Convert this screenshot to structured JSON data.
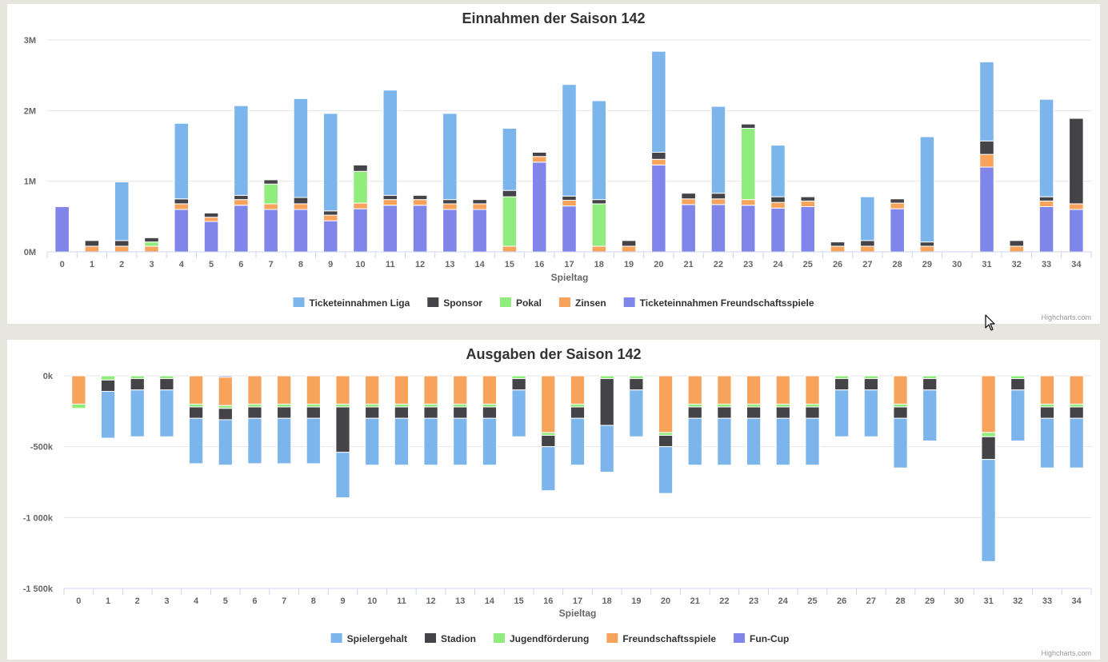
{
  "chart_data": [
    {
      "type": "bar",
      "stacked": true,
      "title": "Einnahmen der Saison 142",
      "xlabel": "Spieltag",
      "ylabel": "",
      "ylim": [
        0,
        3000000
      ],
      "ytick_values": [
        0,
        1000000,
        2000000,
        3000000
      ],
      "ytick_labels": [
        "0M",
        "1M",
        "2M",
        "3M"
      ],
      "grid": true,
      "legend": "bottom-center",
      "credits": "Highcharts.com",
      "categories": [
        "0",
        "1",
        "2",
        "3",
        "4",
        "5",
        "6",
        "7",
        "8",
        "9",
        "10",
        "11",
        "12",
        "13",
        "14",
        "15",
        "16",
        "17",
        "18",
        "19",
        "20",
        "21",
        "22",
        "23",
        "24",
        "25",
        "26",
        "27",
        "28",
        "29",
        "30",
        "31",
        "32",
        "33",
        "34"
      ],
      "series": [
        {
          "name": "Ticketeinnahmen Liga",
          "color": "#7cb5ec",
          "values": [
            0,
            0,
            830000,
            0,
            1070000,
            0,
            1270000,
            0,
            1400000,
            1380000,
            0,
            1490000,
            0,
            1220000,
            0,
            880000,
            0,
            1580000,
            1400000,
            0,
            1430000,
            0,
            1230000,
            0,
            730000,
            0,
            0,
            620000,
            0,
            1490000,
            0,
            1120000,
            0,
            1380000,
            0
          ]
        },
        {
          "name": "Sponsor",
          "color": "#434348",
          "values": [
            0,
            80000,
            80000,
            60000,
            70000,
            60000,
            60000,
            60000,
            90000,
            60000,
            90000,
            60000,
            60000,
            60000,
            60000,
            90000,
            60000,
            60000,
            60000,
            80000,
            100000,
            80000,
            80000,
            60000,
            80000,
            60000,
            60000,
            80000,
            60000,
            60000,
            0,
            190000,
            80000,
            60000,
            1210000
          ]
        },
        {
          "name": "Pokal",
          "color": "#90ed7d",
          "values": [
            0,
            0,
            0,
            60000,
            0,
            0,
            0,
            280000,
            0,
            0,
            450000,
            0,
            0,
            0,
            0,
            700000,
            0,
            0,
            600000,
            0,
            0,
            0,
            0,
            1010000,
            0,
            0,
            0,
            0,
            0,
            0,
            0,
            0,
            0,
            0,
            0
          ]
        },
        {
          "name": "Zinsen",
          "color": "#f7a35c",
          "values": [
            0,
            80000,
            80000,
            80000,
            80000,
            60000,
            80000,
            80000,
            80000,
            80000,
            80000,
            80000,
            80000,
            80000,
            80000,
            80000,
            80000,
            80000,
            80000,
            80000,
            80000,
            80000,
            80000,
            80000,
            80000,
            80000,
            80000,
            80000,
            80000,
            80000,
            0,
            180000,
            80000,
            80000,
            80000
          ]
        },
        {
          "name": "Ticketeinnahmen Freundschaftsspiele",
          "color": "#8085e9",
          "values": [
            640000,
            0,
            0,
            0,
            600000,
            430000,
            660000,
            600000,
            600000,
            440000,
            610000,
            660000,
            660000,
            600000,
            600000,
            0,
            1270000,
            650000,
            0,
            0,
            1230000,
            670000,
            670000,
            660000,
            620000,
            640000,
            0,
            0,
            610000,
            0,
            0,
            1200000,
            0,
            640000,
            600000
          ]
        }
      ]
    },
    {
      "type": "bar",
      "stacked": true,
      "title": "Ausgaben der Saison 142",
      "xlabel": "Spieltag",
      "ylabel": "",
      "ylim": [
        -1500000,
        0
      ],
      "ytick_values": [
        0,
        -500000,
        -1000000,
        -1500000
      ],
      "ytick_labels": [
        "0k",
        "-500k",
        "-1 000k",
        "-1 500k"
      ],
      "grid": true,
      "legend": "bottom-center",
      "credits": "Highcharts.com",
      "categories": [
        "0",
        "1",
        "2",
        "3",
        "4",
        "5",
        "6",
        "7",
        "8",
        "9",
        "10",
        "11",
        "12",
        "13",
        "14",
        "15",
        "16",
        "17",
        "18",
        "19",
        "20",
        "21",
        "22",
        "23",
        "24",
        "25",
        "26",
        "27",
        "28",
        "29",
        "30",
        "31",
        "32",
        "33",
        "34"
      ],
      "series": [
        {
          "name": "Spielergehalt",
          "color": "#7cb5ec",
          "values": [
            0,
            -330000,
            -330000,
            -330000,
            -320000,
            -320000,
            -320000,
            -320000,
            -320000,
            -320000,
            -330000,
            -330000,
            -330000,
            -330000,
            -330000,
            -330000,
            -310000,
            -330000,
            -330000,
            -330000,
            -330000,
            -330000,
            -330000,
            -330000,
            -330000,
            -330000,
            -330000,
            -330000,
            -350000,
            -360000,
            0,
            -720000,
            -360000,
            -350000,
            -350000
          ]
        },
        {
          "name": "Stadion",
          "color": "#434348",
          "values": [
            0,
            -80000,
            -80000,
            -80000,
            -80000,
            -80000,
            -80000,
            -80000,
            -80000,
            -320000,
            -80000,
            -80000,
            -80000,
            -80000,
            -80000,
            -80000,
            -80000,
            -80000,
            -330000,
            -80000,
            -80000,
            -80000,
            -80000,
            -80000,
            -80000,
            -80000,
            -80000,
            -80000,
            -80000,
            -80000,
            0,
            -160000,
            -80000,
            -80000,
            -80000
          ]
        },
        {
          "name": "Jugendförderung",
          "color": "#90ed7d",
          "values": [
            -30000,
            -30000,
            -20000,
            -20000,
            -20000,
            -20000,
            -20000,
            -20000,
            -20000,
            -20000,
            -20000,
            -20000,
            -20000,
            -20000,
            -20000,
            -20000,
            -20000,
            -20000,
            -20000,
            -20000,
            -20000,
            -20000,
            -20000,
            -20000,
            -20000,
            -20000,
            -20000,
            -20000,
            -20000,
            -20000,
            0,
            -30000,
            -20000,
            -20000,
            -20000
          ]
        },
        {
          "name": "Freundschaftsspiele",
          "color": "#f7a35c",
          "values": [
            -200000,
            0,
            0,
            0,
            -200000,
            -200000,
            -200000,
            -200000,
            -200000,
            -200000,
            -200000,
            -200000,
            -200000,
            -200000,
            -200000,
            0,
            -400000,
            -200000,
            0,
            0,
            -400000,
            -200000,
            -200000,
            -200000,
            -200000,
            -200000,
            0,
            0,
            -200000,
            0,
            0,
            -400000,
            0,
            -200000,
            -200000
          ]
        },
        {
          "name": "Fun-Cup",
          "color": "#8085e9",
          "values": [
            0,
            0,
            0,
            0,
            0,
            -10000,
            0,
            0,
            0,
            0,
            0,
            0,
            0,
            0,
            0,
            0,
            0,
            0,
            0,
            0,
            0,
            0,
            0,
            0,
            0,
            0,
            0,
            0,
            0,
            0,
            0,
            0,
            0,
            0,
            0
          ]
        }
      ]
    }
  ]
}
